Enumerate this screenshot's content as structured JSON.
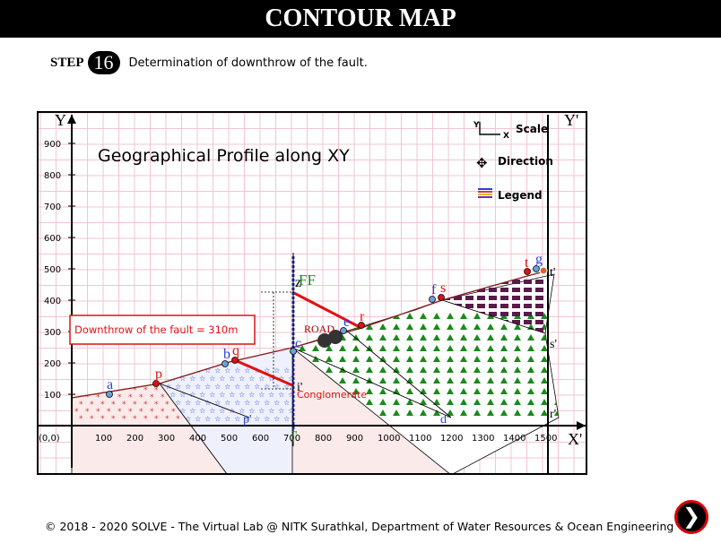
{
  "header": {
    "title": "CONTOUR MAP"
  },
  "step": {
    "label": "STEP",
    "number": "16",
    "text": "Determination of downthrow of the fault."
  },
  "map": {
    "profile_title": "Geographical Profile along XY",
    "y_ticks": [
      "900",
      "800",
      "700",
      "600",
      "500",
      "400",
      "300",
      "200",
      "100"
    ],
    "x_ticks": [
      "100",
      "200",
      "300",
      "400",
      "500",
      "600",
      "700",
      "800",
      "900",
      "1000",
      "1100",
      "1200",
      "1300",
      "1400",
      "1500"
    ],
    "origin_label": "(0,0)",
    "axis_y": "Y",
    "axis_y_prime": "Y'",
    "axis_x_prime": "X'",
    "toolbar": {
      "scale": "Scale",
      "direction": "Direction",
      "legend": "Legend",
      "mini_y": "Y",
      "mini_x": "X"
    },
    "downthrow_text": "Downthrow of the fault = 310m",
    "road_label": "ROAD",
    "conglomerate_label": "Conglomerate",
    "fault_label": "FF",
    "point_labels": {
      "a": "a",
      "b": "b",
      "c": "c",
      "e": "e",
      "f": "f",
      "g": "g",
      "p": "p",
      "q": "q",
      "r": "r",
      "s": "s",
      "t": "t",
      "z": "z",
      "fault_lower": "i'"
    },
    "prime_labels": {
      "p": "p'",
      "d": "d'",
      "r": "r'",
      "s": "s'",
      "t": "t'",
      "j": "j'",
      "i": "i'"
    },
    "colors": {
      "grid": "#f2c4d0",
      "lower_bed": "#d43a3a",
      "star_bed": "#2c3fd8",
      "tri_bed": "#1a8a1a",
      "square_bed": "#5a1a4a",
      "fault": "#2c3fd8",
      "highlight": "#e01010"
    }
  },
  "footer": {
    "text": "© 2018 - 2020 SOLVE - The Virtual Lab @ NITK Surathkal, Department of Water Resources & Ocean Engineering"
  },
  "nav": {
    "next_label": "❯"
  }
}
